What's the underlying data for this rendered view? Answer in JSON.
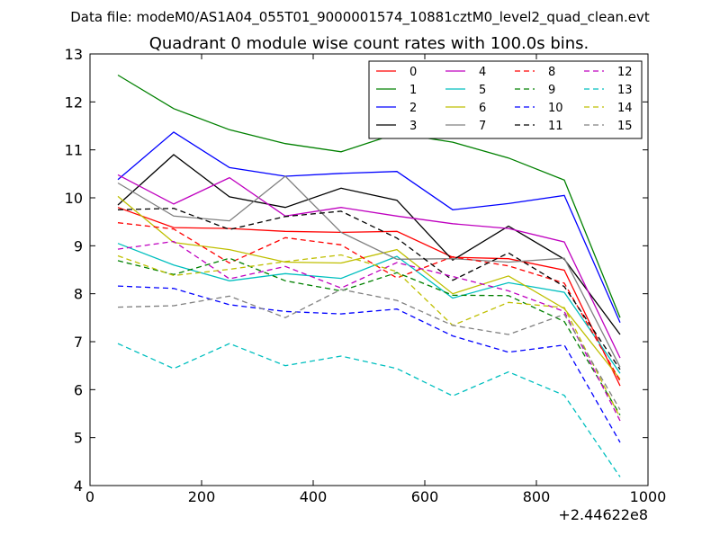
{
  "figure": {
    "suptitle": "Data file: modeM0/AS1A04_055T01_9000001574_10881cztM0_level2_quad_clean.evt",
    "title": "Quadrant 0 module wise count rates with 100.0s bins.",
    "x_offset_label": "+2.44622e8"
  },
  "chart_data": {
    "type": "line",
    "title": "Quadrant 0 module wise count rates with 100.0s bins.",
    "xlabel": "",
    "ylabel": "",
    "x_offset": "+2.44622e8",
    "xlim": [
      0,
      1000
    ],
    "ylim": [
      4,
      13
    ],
    "xticks": [
      0,
      200,
      400,
      600,
      800,
      1000
    ],
    "yticks": [
      4,
      5,
      6,
      7,
      8,
      9,
      10,
      11,
      12,
      13
    ],
    "xtick_labels": [
      "0",
      "200",
      "400",
      "600",
      "800",
      "1000"
    ],
    "ytick_labels": [
      "4",
      "5",
      "6",
      "7",
      "8",
      "9",
      "10",
      "11",
      "12",
      "13"
    ],
    "grid": false,
    "legend_position": "top-right",
    "x": [
      50,
      150,
      250,
      350,
      450,
      550,
      650,
      750,
      850,
      950
    ],
    "series": [
      {
        "name": "0",
        "color": "#ff0000",
        "style": "solid",
        "values": [
          9.8,
          9.38,
          9.36,
          9.3,
          9.28,
          9.3,
          8.76,
          8.73,
          8.49,
          6.08
        ]
      },
      {
        "name": "1",
        "color": "#008000",
        "style": "solid",
        "values": [
          12.56,
          11.86,
          11.42,
          11.13,
          10.96,
          11.34,
          11.16,
          10.83,
          10.37,
          7.5
        ]
      },
      {
        "name": "2",
        "color": "#0000ff",
        "style": "solid",
        "values": [
          10.38,
          11.37,
          10.63,
          10.45,
          10.51,
          10.55,
          9.75,
          9.88,
          10.05,
          7.4
        ]
      },
      {
        "name": "3",
        "color": "#000000",
        "style": "solid",
        "values": [
          9.85,
          10.9,
          10.02,
          9.8,
          10.2,
          9.95,
          8.7,
          9.41,
          8.72,
          7.15
        ]
      },
      {
        "name": "4",
        "color": "#bf00bf",
        "style": "solid",
        "values": [
          10.48,
          9.87,
          10.42,
          9.62,
          9.8,
          9.62,
          9.46,
          9.36,
          9.08,
          6.66
        ]
      },
      {
        "name": "5",
        "color": "#00bfbf",
        "style": "solid",
        "values": [
          9.05,
          8.6,
          8.27,
          8.42,
          8.32,
          8.78,
          7.91,
          8.23,
          8.03,
          6.34
        ]
      },
      {
        "name": "6",
        "color": "#bfbf00",
        "style": "solid",
        "values": [
          10.03,
          9.07,
          8.92,
          8.66,
          8.64,
          8.92,
          8.0,
          8.37,
          7.69,
          6.22
        ]
      },
      {
        "name": "7",
        "color": "#808080",
        "style": "solid",
        "values": [
          10.31,
          9.62,
          9.52,
          10.45,
          9.28,
          8.72,
          8.73,
          8.66,
          8.74,
          6.47
        ]
      },
      {
        "name": "8",
        "color": "#ff0000",
        "style": "dashed",
        "values": [
          9.48,
          9.35,
          8.64,
          9.17,
          9.02,
          8.33,
          8.77,
          8.58,
          8.22,
          6.18
        ]
      },
      {
        "name": "9",
        "color": "#008000",
        "style": "dashed",
        "values": [
          8.69,
          8.4,
          8.74,
          8.27,
          8.06,
          8.44,
          7.97,
          7.96,
          7.42,
          5.47
        ]
      },
      {
        "name": "10",
        "color": "#0000ff",
        "style": "dashed",
        "values": [
          8.16,
          8.11,
          7.77,
          7.63,
          7.58,
          7.68,
          7.12,
          6.78,
          6.93,
          4.9
        ]
      },
      {
        "name": "11",
        "color": "#000000",
        "style": "dashed",
        "values": [
          9.75,
          9.78,
          9.34,
          9.61,
          9.72,
          9.16,
          8.28,
          8.85,
          8.15,
          6.42
        ]
      },
      {
        "name": "12",
        "color": "#bf00bf",
        "style": "dashed",
        "values": [
          8.93,
          9.09,
          8.31,
          8.57,
          8.12,
          8.65,
          8.36,
          8.06,
          7.63,
          5.35
        ]
      },
      {
        "name": "13",
        "color": "#00bfbf",
        "style": "dashed",
        "values": [
          6.96,
          6.44,
          6.96,
          6.5,
          6.7,
          6.44,
          5.87,
          6.37,
          5.88,
          4.18
        ]
      },
      {
        "name": "14",
        "color": "#bfbf00",
        "style": "dashed",
        "values": [
          8.79,
          8.38,
          8.51,
          8.67,
          8.81,
          8.46,
          7.34,
          7.82,
          7.71,
          5.42
        ]
      },
      {
        "name": "15",
        "color": "#808080",
        "style": "dashed",
        "values": [
          7.72,
          7.75,
          7.95,
          7.5,
          8.09,
          7.86,
          7.34,
          7.15,
          7.57,
          5.58
        ]
      }
    ]
  }
}
